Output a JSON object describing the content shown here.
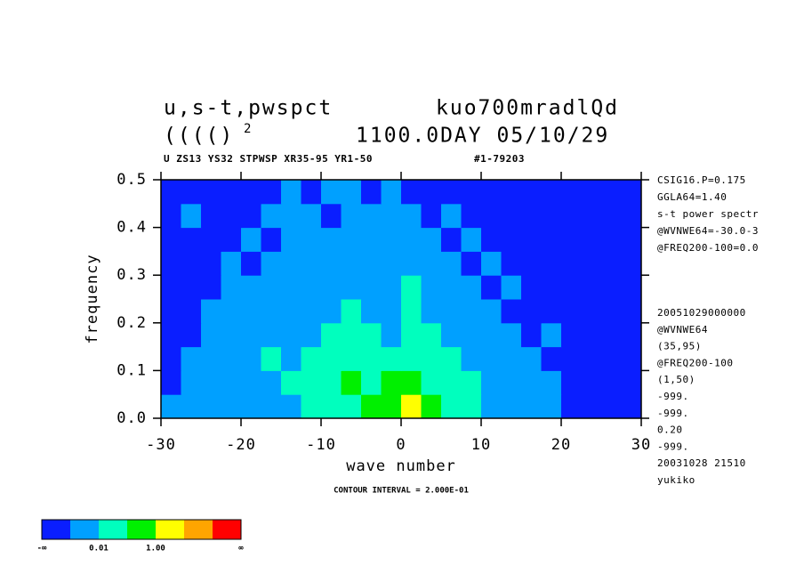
{
  "chart_data": {
    "type": "heatmap",
    "title_left": "u,s-t,pwspct",
    "title_right": "kuo700mradlQd",
    "title_left2": "(((()",
    "title_sup": "2",
    "title_right2": "1100.0DAY 05/10/29",
    "subtitle_left": "U ZS13 YS32 STPWSP XR35-95 YR1-50",
    "subtitle_right": "#1-79203",
    "xlabel": "wave number",
    "ylabel": "frequency",
    "footer": "CONTOUR INTERVAL = 2.000E-01",
    "notes_top": [
      "CSIG16.P=0.175",
      "GGLA64=1.40",
      "s-t power spectr",
      "@WVNWE64=-30.0-3",
      "@FREQ200-100=0.0"
    ],
    "notes_bottom": [
      "20051029000000",
      "@WVNWE64",
      "(35,95)",
      "@FREQ200-100",
      "(1,50)",
      "-999.",
      "-999.",
      "0.20",
      "-999.",
      "20031028  21510",
      "yukiko"
    ],
    "xlim": [
      -30,
      30
    ],
    "xticks": [
      -30,
      -20,
      -10,
      0,
      10,
      20,
      30
    ],
    "ylim": [
      0,
      0.5
    ],
    "yticks": [
      {
        "value": 0,
        "label": "0.0"
      },
      {
        "value": 0.1,
        "label": "0.1"
      },
      {
        "value": 0.2,
        "label": "0.2"
      },
      {
        "value": 0.3,
        "label": "0.3"
      },
      {
        "value": 0.4,
        "label": "0.4"
      },
      {
        "value": 0.5,
        "label": "0.5"
      }
    ],
    "x_edges": [
      -30,
      30
    ],
    "y_edges": [
      0,
      0.5
    ],
    "levels": [
      0.001,
      0.01,
      0.1,
      1,
      10,
      100
    ],
    "colors": [
      "#0a1eff",
      "#00a0ff",
      "#00ffbe",
      "#00f000",
      "#ffff00",
      "#ffa500",
      "#ff0000"
    ],
    "colorbar_ticks": [
      {
        "value": null,
        "label": "-∞"
      },
      {
        "value": 0.01,
        "label": "0.01"
      },
      {
        "value": 1,
        "label": "1.00"
      },
      {
        "value": null,
        "label": "∞"
      }
    ],
    "z": [
      [
        0.005,
        0.005,
        0.005,
        0.005,
        0.005,
        0.005,
        0.005,
        0.05,
        0.05,
        0.05,
        0.5,
        0.5,
        5,
        0.5,
        0.05,
        0.05,
        0.005,
        0.005,
        0.005,
        0.005,
        0.0005,
        0.0005,
        0.0005,
        0.0005
      ],
      [
        0.0005,
        0.005,
        0.005,
        0.005,
        0.005,
        0.005,
        0.05,
        0.05,
        0.05,
        0.5,
        0.05,
        0.5,
        0.5,
        0.05,
        0.05,
        0.05,
        0.005,
        0.005,
        0.005,
        0.005,
        0.0005,
        0.0005,
        0.0005,
        0.0005
      ],
      [
        0.0005,
        0.005,
        0.005,
        0.005,
        0.005,
        0.05,
        0.005,
        0.05,
        0.05,
        0.05,
        0.05,
        0.05,
        0.05,
        0.05,
        0.05,
        0.005,
        0.005,
        0.005,
        0.005,
        0.0005,
        0.0005,
        0.0005,
        0.0005,
        0.0005
      ],
      [
        0.0005,
        0.0005,
        0.005,
        0.005,
        0.005,
        0.005,
        0.005,
        0.005,
        0.05,
        0.05,
        0.05,
        0.005,
        0.05,
        0.05,
        0.005,
        0.005,
        0.005,
        0.005,
        0.0005,
        0.005,
        0.0005,
        0.0005,
        0.0005,
        0.0005
      ],
      [
        0.0005,
        0.0005,
        0.005,
        0.005,
        0.005,
        0.005,
        0.005,
        0.005,
        0.005,
        0.05,
        0.005,
        0.005,
        0.05,
        0.005,
        0.005,
        0.005,
        0.005,
        0.0005,
        0.0005,
        0.0005,
        0.0005,
        0.0005,
        0.0005,
        0.0005
      ],
      [
        0.0005,
        0.0005,
        0.0005,
        0.005,
        0.005,
        0.005,
        0.005,
        0.005,
        0.005,
        0.005,
        0.005,
        0.005,
        0.05,
        0.005,
        0.005,
        0.005,
        0.0005,
        0.005,
        0.0005,
        0.0005,
        0.0005,
        0.0005,
        0.0005,
        0.0005
      ],
      [
        0.0005,
        0.0005,
        0.0005,
        0.005,
        0.0005,
        0.005,
        0.005,
        0.005,
        0.005,
        0.005,
        0.005,
        0.005,
        0.005,
        0.005,
        0.005,
        0.0005,
        0.005,
        0.0005,
        0.0005,
        0.0005,
        0.0005,
        0.0005,
        0.0005,
        0.0005
      ],
      [
        0.0005,
        0.0005,
        0.0005,
        0.0005,
        0.005,
        0.0005,
        0.005,
        0.005,
        0.005,
        0.005,
        0.005,
        0.005,
        0.005,
        0.005,
        0.0005,
        0.005,
        0.0005,
        0.0005,
        0.0005,
        0.0005,
        0.0005,
        0.0005,
        0.0005,
        0.0005
      ],
      [
        0.0005,
        0.005,
        0.0005,
        0.0005,
        0.0005,
        0.005,
        0.005,
        0.005,
        0.0005,
        0.005,
        0.005,
        0.005,
        0.005,
        0.0005,
        0.005,
        0.0005,
        0.0005,
        0.0005,
        0.0005,
        0.0005,
        0.0005,
        0.0005,
        0.0005,
        0.0005
      ],
      [
        0.0005,
        0.0005,
        0.0005,
        0.0005,
        0.0005,
        0.0005,
        0.005,
        0.0005,
        0.005,
        0.005,
        0.0005,
        0.005,
        0.0005,
        0.0005,
        0.0005,
        0.0005,
        0.0005,
        0.0005,
        0.0005,
        0.0005,
        0.0005,
        0.0005,
        0.0005,
        0.0005
      ]
    ]
  }
}
